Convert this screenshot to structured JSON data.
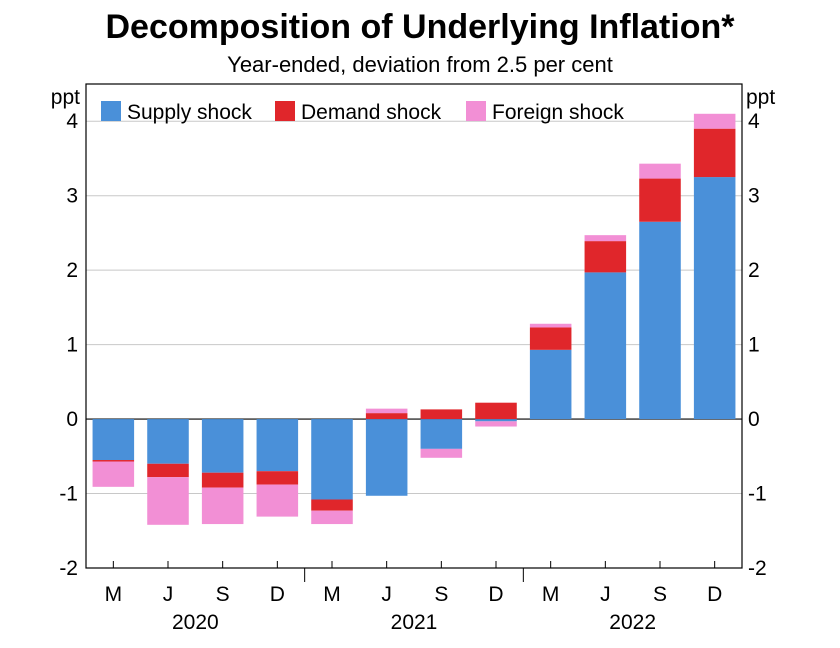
{
  "chart_data": {
    "type": "bar",
    "stacked": true,
    "title": "Decomposition of Underlying Inflation*",
    "subtitle": "Year-ended, deviation from 2.5 per cent",
    "ylabel_left": "ppt",
    "ylabel_right": "ppt",
    "ylim": [
      -2,
      4.5
    ],
    "yticks": [
      -2,
      -1,
      0,
      1,
      2,
      3,
      4
    ],
    "ytick_labels": [
      "-2",
      "-1",
      "0",
      "1",
      "2",
      "3",
      "4"
    ],
    "categories": [
      "M",
      "J",
      "S",
      "D",
      "M",
      "J",
      "S",
      "D",
      "M",
      "J",
      "S",
      "D"
    ],
    "years": [
      {
        "label": "2020",
        "start": 0,
        "end": 3
      },
      {
        "label": "2021",
        "start": 4,
        "end": 7
      },
      {
        "label": "2022",
        "start": 8,
        "end": 11
      }
    ],
    "legend_position": "top-left",
    "gridlines": true,
    "series": [
      {
        "name": "Supply shock",
        "color": "#4a90d9",
        "values": [
          -0.55,
          -0.6,
          -0.72,
          -0.7,
          -1.08,
          -1.03,
          -0.4,
          -0.03,
          0.93,
          1.97,
          2.65,
          3.25
        ]
      },
      {
        "name": "Demand shock",
        "color": "#e0262b",
        "values": [
          -0.02,
          -0.18,
          -0.2,
          -0.18,
          -0.15,
          0.08,
          0.13,
          0.22,
          0.3,
          0.42,
          0.58,
          0.65
        ]
      },
      {
        "name": "Foreign shock",
        "color": "#f28fd5",
        "values": [
          -0.34,
          -0.64,
          -0.49,
          -0.43,
          -0.18,
          0.06,
          -0.12,
          -0.07,
          0.05,
          0.08,
          0.2,
          0.2
        ]
      }
    ]
  }
}
